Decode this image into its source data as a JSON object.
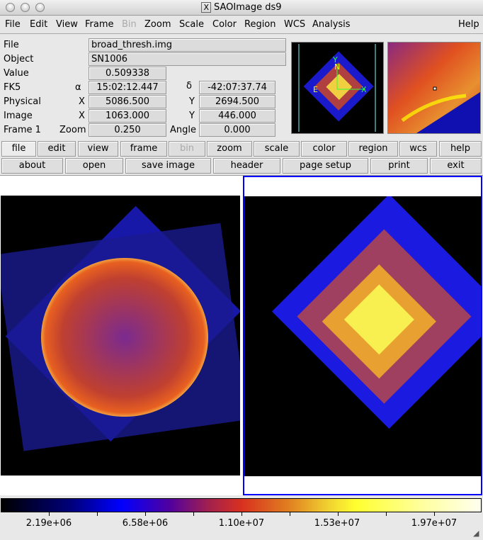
{
  "window": {
    "title": "SAOImage ds9"
  },
  "menubar": [
    "File",
    "Edit",
    "View",
    "Frame",
    "Bin",
    "Zoom",
    "Scale",
    "Color",
    "Region",
    "WCS",
    "Analysis",
    "Help"
  ],
  "info": {
    "file_label": "File",
    "file": "broad_thresh.img",
    "object_label": "Object",
    "object": "SN1006",
    "value_label": "Value",
    "value": "0.509338",
    "fk5_label": "FK5",
    "alpha_symbol": "α",
    "alpha": "15:02:12.447",
    "delta_symbol": "δ",
    "delta": "-42:07:37.74",
    "physical_label": "Physical",
    "px_label": "X",
    "physical_x": "5086.500",
    "py_label": "Y",
    "physical_y": "2694.500",
    "image_label": "Image",
    "ix_label": "X",
    "image_x": "1063.000",
    "iy_label": "Y",
    "image_y": "446.000",
    "frame_label": "Frame 1",
    "zoom_label": "Zoom",
    "zoom": "0.250",
    "angle_label": "Angle",
    "angle": "0.000"
  },
  "panner": {
    "n": "N",
    "e": "E",
    "x": "X",
    "y": "Y"
  },
  "buttons_row1": [
    "file",
    "edit",
    "view",
    "frame",
    "bin",
    "zoom",
    "scale",
    "color",
    "region",
    "wcs",
    "help"
  ],
  "buttons_row2": [
    "about",
    "open",
    "save image",
    "header",
    "page setup",
    "print",
    "exit"
  ],
  "colorbar": {
    "labels": [
      "2.19e+06",
      "6.58e+06",
      "1.10e+07",
      "1.53e+07",
      "1.97e+07"
    ],
    "colormap": "sls"
  },
  "colors": {
    "frame_highlight": "#0000ff",
    "button_bg": "#dedede"
  }
}
